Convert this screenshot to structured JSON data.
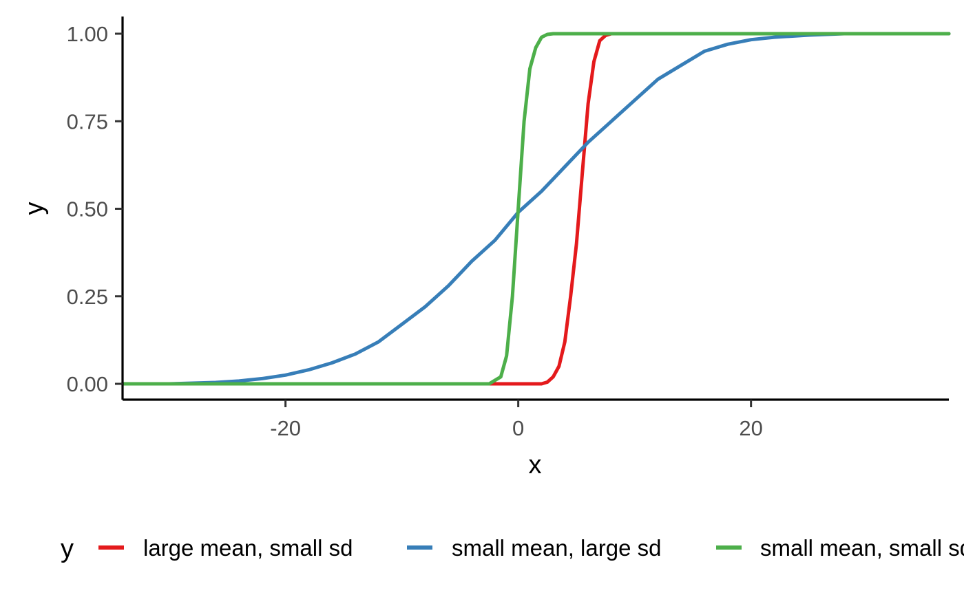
{
  "chart_data": {
    "type": "line",
    "title": "",
    "xlabel": "x",
    "ylabel": "y",
    "xlim": [
      -34,
      37
    ],
    "ylim": [
      -0.05,
      1.05
    ],
    "x_ticks": [
      -20,
      0,
      20
    ],
    "x_tick_labels": [
      "-20",
      "0",
      "20"
    ],
    "y_ticks": [
      0,
      0.25,
      0.5,
      0.75,
      1.0
    ],
    "y_tick_labels": [
      "0.00",
      "0.25",
      "0.50",
      "0.75",
      "1.00"
    ],
    "grid": false,
    "legend": {
      "position": "bottom",
      "title": "y"
    },
    "series": [
      {
        "name": "large mean, small sd",
        "color": "#e41a1c",
        "points": [
          [
            -3,
            0
          ],
          [
            2,
            0
          ],
          [
            2.5,
            0.005
          ],
          [
            3,
            0.02
          ],
          [
            3.5,
            0.05
          ],
          [
            4,
            0.12
          ],
          [
            4.5,
            0.25
          ],
          [
            5,
            0.4
          ],
          [
            5.5,
            0.6
          ],
          [
            6,
            0.8
          ],
          [
            6.5,
            0.92
          ],
          [
            7,
            0.98
          ],
          [
            7.5,
            0.995
          ],
          [
            8,
            1.0
          ],
          [
            37,
            1.0
          ]
        ]
      },
      {
        "name": "small mean, large sd",
        "color": "#377eb8",
        "points": [
          [
            -34,
            0
          ],
          [
            -30,
            0
          ],
          [
            -26,
            0.004
          ],
          [
            -24,
            0.008
          ],
          [
            -22,
            0.015
          ],
          [
            -20,
            0.025
          ],
          [
            -18,
            0.04
          ],
          [
            -16,
            0.06
          ],
          [
            -14,
            0.085
          ],
          [
            -12,
            0.12
          ],
          [
            -10,
            0.17
          ],
          [
            -8,
            0.22
          ],
          [
            -6,
            0.28
          ],
          [
            -4,
            0.35
          ],
          [
            -2,
            0.41
          ],
          [
            0,
            0.49
          ],
          [
            2,
            0.55
          ],
          [
            4,
            0.62
          ],
          [
            6,
            0.69
          ],
          [
            8,
            0.75
          ],
          [
            10,
            0.81
          ],
          [
            12,
            0.87
          ],
          [
            14,
            0.91
          ],
          [
            16,
            0.95
          ],
          [
            18,
            0.97
          ],
          [
            20,
            0.983
          ],
          [
            22,
            0.99
          ],
          [
            25,
            0.996
          ],
          [
            28,
            1.0
          ],
          [
            37,
            1.0
          ]
        ]
      },
      {
        "name": "small mean, small sd",
        "color": "#4daf4a",
        "points": [
          [
            -34,
            0
          ],
          [
            -2.5,
            0
          ],
          [
            -1.5,
            0.02
          ],
          [
            -1,
            0.08
          ],
          [
            -0.5,
            0.25
          ],
          [
            0,
            0.5
          ],
          [
            0.5,
            0.75
          ],
          [
            1,
            0.9
          ],
          [
            1.5,
            0.96
          ],
          [
            2,
            0.99
          ],
          [
            2.5,
            0.998
          ],
          [
            3,
            1.0
          ],
          [
            37,
            1.0
          ]
        ]
      }
    ]
  }
}
